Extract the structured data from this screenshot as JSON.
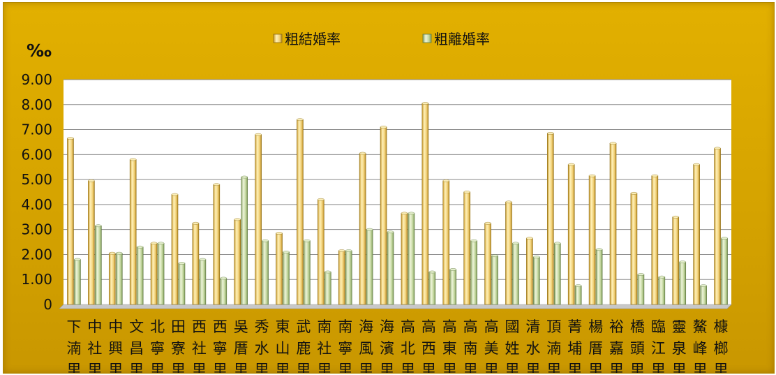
{
  "chart_data": {
    "type": "bar",
    "unit_label": "‰",
    "legend": [
      "粗結婚率",
      "粗離婚率"
    ],
    "legend_position": "top",
    "y_ticks": [
      "0",
      "1.00",
      "2.00",
      "3.00",
      "4.00",
      "5.00",
      "6.00",
      "7.00",
      "8.00",
      "9.00"
    ],
    "ylim": [
      0,
      9
    ],
    "grid": true,
    "categories": [
      "下湳里",
      "中社里",
      "中興里",
      "文昌里",
      "北寧里",
      "田寮里",
      "西社里",
      "西寧里",
      "吳厝里",
      "秀水里",
      "東山里",
      "武鹿里",
      "南社里",
      "南寧里",
      "海風里",
      "海濱里",
      "高北里",
      "高西里",
      "高東里",
      "高南里",
      "高美里",
      "國姓里",
      "清水里",
      "頂湳里",
      "菁埔里",
      "楊厝里",
      "裕嘉里",
      "橋頭里",
      "臨江里",
      "靈泉里",
      "鰲峰里",
      "槺榔里"
    ],
    "series": [
      {
        "name": "粗結婚率",
        "color": "#f2d77a",
        "values": [
          6.65,
          4.95,
          2.05,
          5.8,
          2.45,
          4.4,
          3.25,
          4.8,
          3.4,
          6.8,
          2.85,
          7.4,
          4.2,
          2.15,
          6.05,
          7.1,
          3.65,
          8.05,
          4.95,
          4.5,
          3.25,
          4.1,
          2.65,
          6.85,
          5.6,
          5.15,
          6.45,
          4.45,
          5.15,
          3.5,
          5.6,
          6.25
        ]
      },
      {
        "name": "粗離婚率",
        "color": "#c3d7a0",
        "values": [
          1.8,
          3.15,
          2.05,
          2.3,
          2.45,
          1.65,
          1.8,
          1.05,
          5.1,
          2.55,
          2.1,
          2.55,
          1.3,
          2.15,
          3.0,
          2.9,
          3.65,
          1.3,
          1.4,
          2.55,
          1.95,
          2.45,
          1.9,
          2.45,
          0.75,
          2.2,
          0.0,
          1.2,
          1.1,
          1.7,
          0.75,
          2.65
        ]
      }
    ]
  },
  "colors": {
    "frame": "#d5a300",
    "plot_background": "#ffffff",
    "gridline": "#8a8a8a",
    "marriage_bar": "#f2d77a",
    "divorce_bar": "#c3d7a0"
  }
}
